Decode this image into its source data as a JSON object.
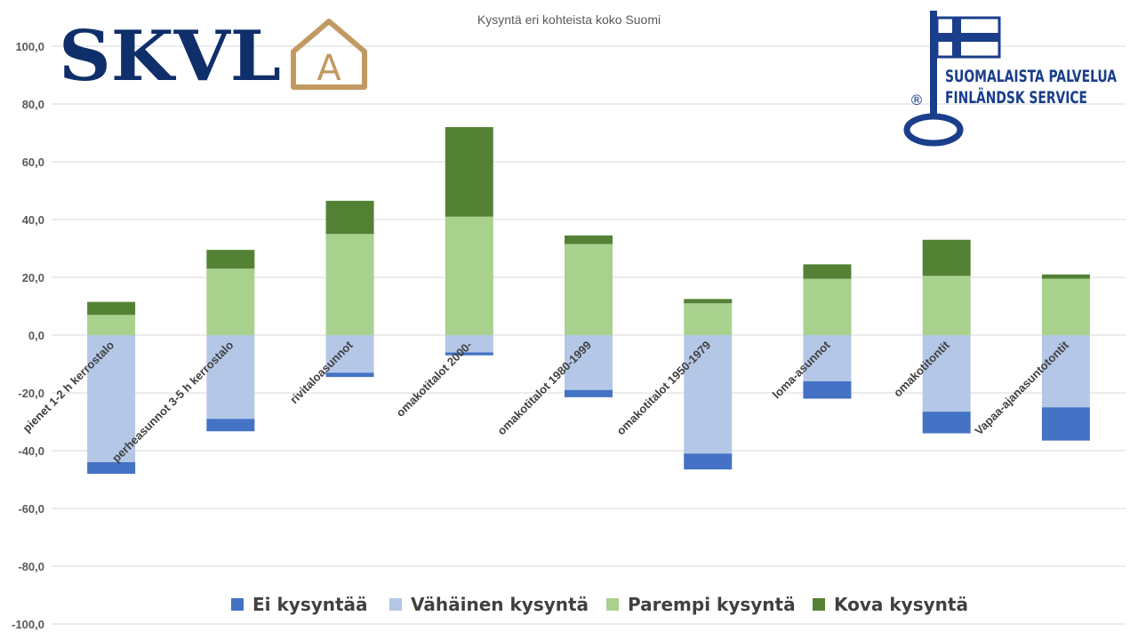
{
  "logos": {
    "skvl_text": "SKVL",
    "skvl_mark": "A",
    "key_line1": "SUOMALAISTA PALVELUA",
    "key_line2": "FINLÄNDSK SERVICE",
    "key_registered": "®"
  },
  "chart_data": {
    "type": "bar",
    "stacked": true,
    "title": "Kysyntä eri kohteista koko Suomi",
    "xlabel": "",
    "ylabel": "",
    "ylim": [
      -100,
      100
    ],
    "ytick_step": 20,
    "grid": true,
    "legend_position": "bottom",
    "categories": [
      "pienet 1-2 h kerrostalo",
      "perheasunnot 3-5 h kerrostalo",
      "rivitaloasunnot",
      "omakotitalot 2000-",
      "omakotitalot 1980-1999",
      "omakotitalot 1950-1979",
      "loma-asunnot",
      "omakotitontit",
      "Vapaa-ajanasuntotontit"
    ],
    "series": [
      {
        "name": "Ei kysyntää",
        "color": "#4472C4",
        "values": [
          -4.0,
          -4.3,
          -1.5,
          -1.0,
          -2.5,
          -5.5,
          -6.0,
          -7.5,
          -11.5
        ]
      },
      {
        "name": "Vähäinen kysyntä",
        "color": "#B4C7E7",
        "values": [
          -44.0,
          -29.0,
          -13.0,
          -6.0,
          -19.0,
          -41.0,
          -16.0,
          -26.5,
          -25.0
        ]
      },
      {
        "name": "Parempi kysyntä",
        "color": "#A9D18E",
        "values": [
          7.0,
          23.0,
          35.0,
          41.0,
          31.5,
          11.0,
          19.5,
          20.5,
          19.5
        ]
      },
      {
        "name": "Kova kysyntä",
        "color": "#548235",
        "values": [
          4.5,
          6.5,
          11.5,
          31.0,
          3.0,
          1.5,
          5.0,
          12.5,
          1.5
        ]
      }
    ]
  }
}
